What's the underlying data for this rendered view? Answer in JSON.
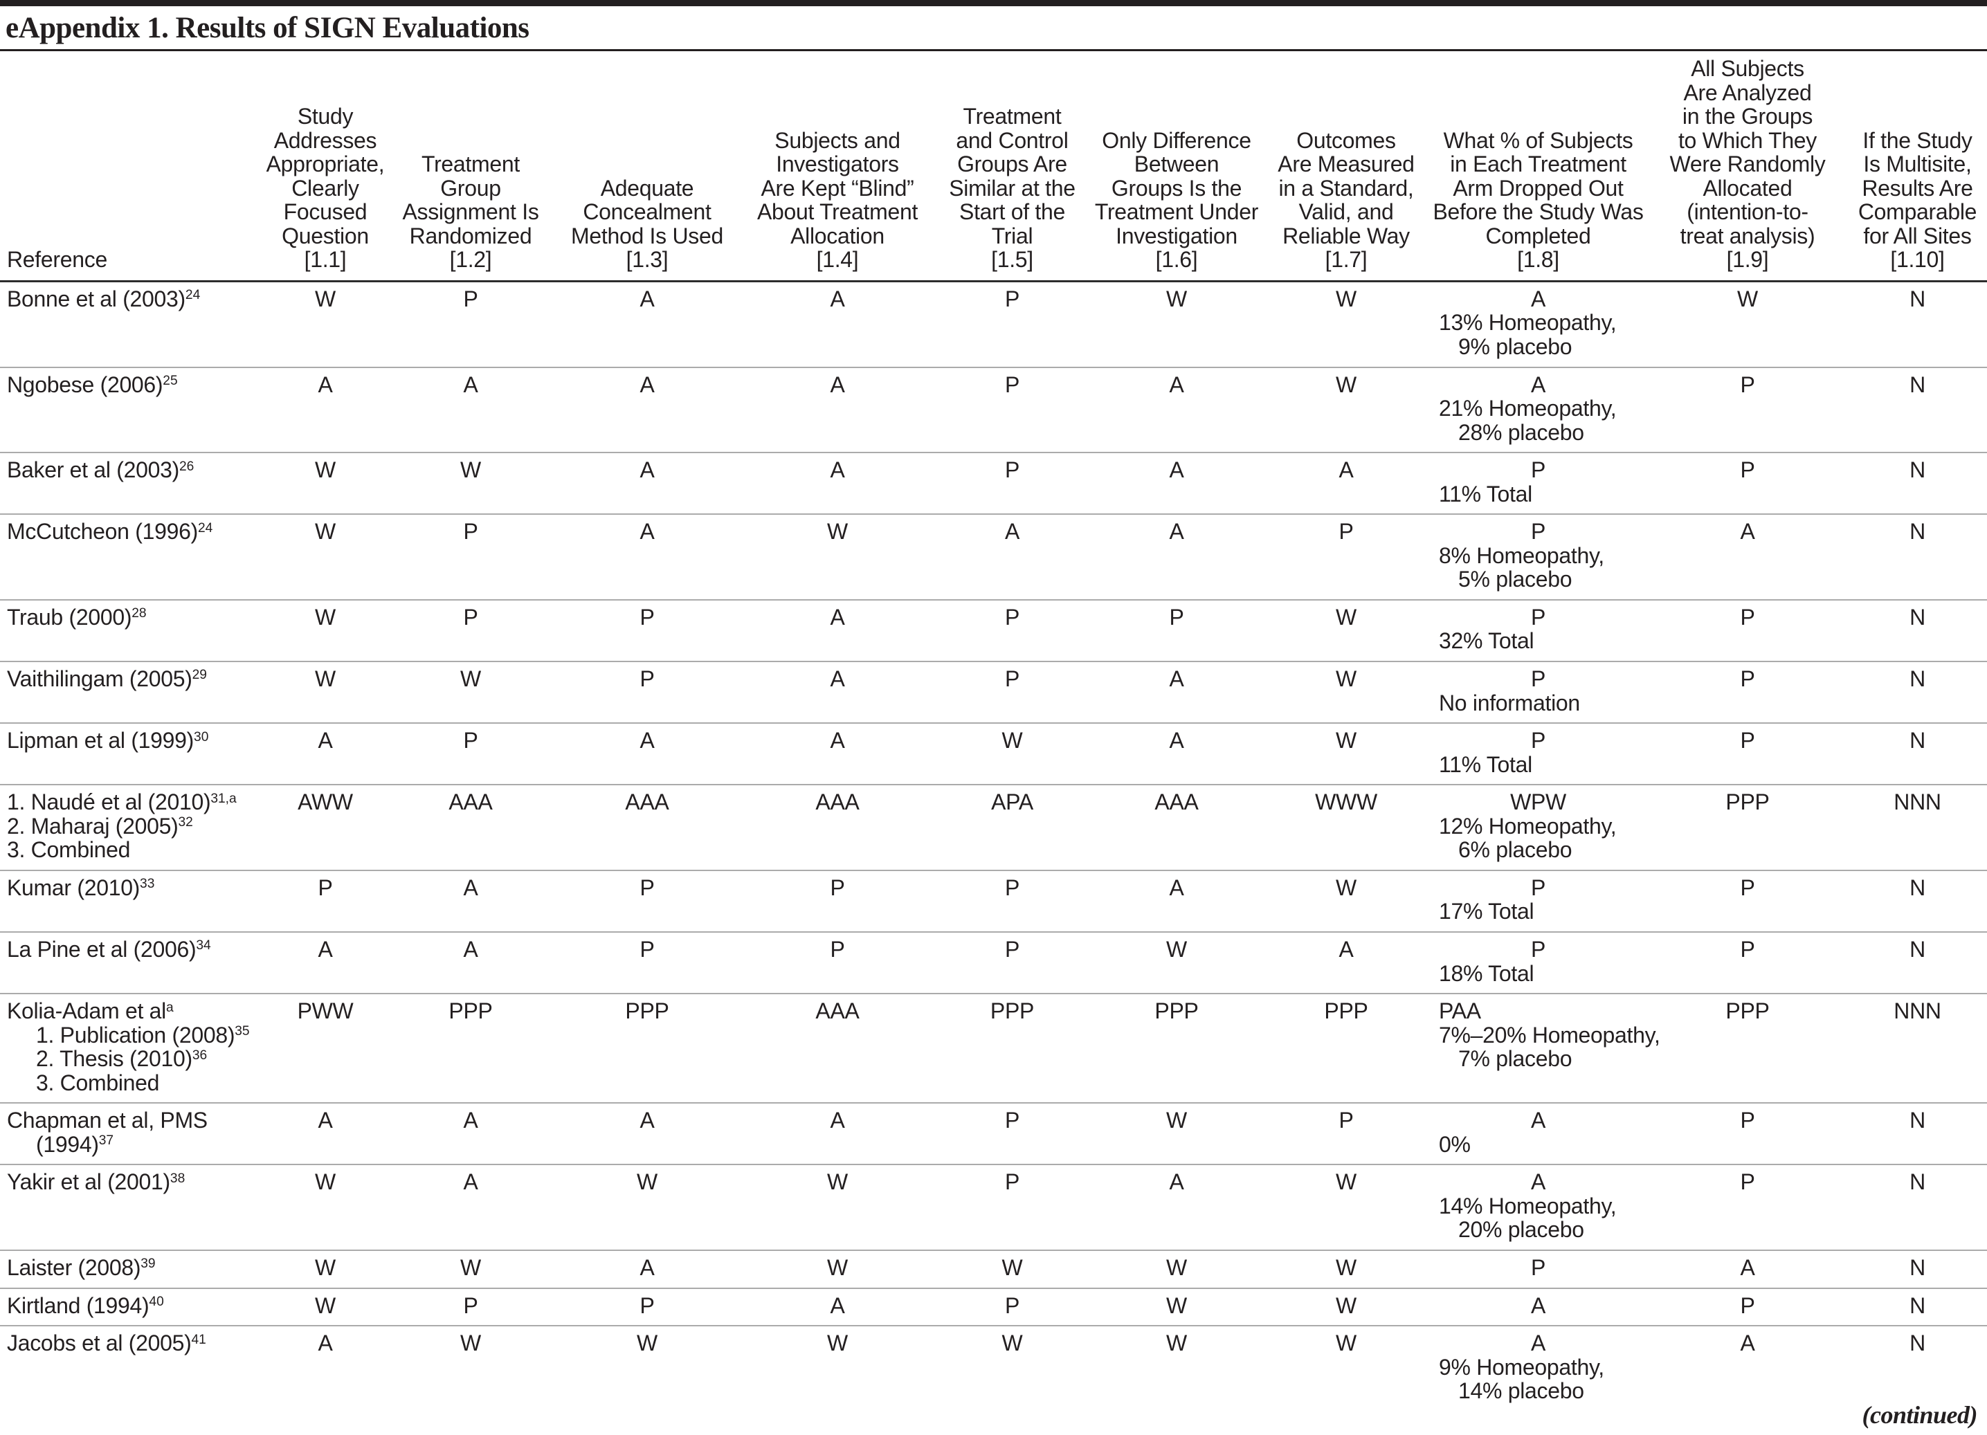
{
  "title": "eAppendix 1. Results of SIGN Evaluations",
  "continued": "(continued)",
  "table": {
    "reference_header": "Reference",
    "columns": [
      {
        "id": "1.1",
        "lines": [
          "Study",
          "Addresses",
          "Appropriate,",
          "Clearly",
          "Focused",
          "Question",
          "[1.1]"
        ]
      },
      {
        "id": "1.2",
        "lines": [
          "Treatment",
          "Group",
          "Assignment Is",
          "Randomized",
          "[1.2]"
        ]
      },
      {
        "id": "1.3",
        "lines": [
          "Adequate",
          "Concealment",
          "Method Is Used",
          "[1.3]"
        ]
      },
      {
        "id": "1.4",
        "lines": [
          "Subjects and",
          "Investigators",
          "Are Kept “Blind”",
          "About Treatment",
          "Allocation",
          "[1.4]"
        ]
      },
      {
        "id": "1.5",
        "lines": [
          "Treatment",
          "and Control",
          "Groups Are",
          "Similar at the",
          "Start of the",
          "Trial",
          "[1.5]"
        ]
      },
      {
        "id": "1.6",
        "lines": [
          "Only Difference",
          "Between",
          "Groups Is the",
          "Treatment Under",
          "Investigation",
          "[1.6]"
        ]
      },
      {
        "id": "1.7",
        "lines": [
          "Outcomes",
          "Are Measured",
          "in a Standard,",
          "Valid, and",
          "Reliable Way",
          "[1.7]"
        ]
      },
      {
        "id": "1.8",
        "lines": [
          "What % of Subjects",
          "in Each Treatment",
          "Arm Dropped Out",
          "Before the Study Was",
          "Completed",
          "[1.8]"
        ]
      },
      {
        "id": "1.9",
        "lines": [
          "All Subjects",
          "Are Analyzed",
          "in the Groups",
          "to Which They",
          "Were Randomly",
          "Allocated",
          "(intention-to-",
          "treat analysis)",
          "[1.9]"
        ]
      },
      {
        "id": "1.10",
        "lines": [
          "If the Study",
          "Is Multisite,",
          "Results Are",
          "Comparable",
          "for All Sites",
          "[1.10]"
        ]
      }
    ],
    "rows": [
      {
        "ref": [
          {
            "text": "Bonne et al (2003)",
            "sup": "24"
          }
        ],
        "values": [
          "W",
          "P",
          "A",
          "A",
          "P",
          "W",
          "W"
        ],
        "dropout": {
          "value": "A",
          "align": "center",
          "notes": [
            "13% Homeopathy,",
            "9% placebo"
          ]
        },
        "itt": "W",
        "multisite": "N"
      },
      {
        "ref": [
          {
            "text": "Ngobese (2006)",
            "sup": "25"
          }
        ],
        "values": [
          "A",
          "A",
          "A",
          "A",
          "P",
          "A",
          "W"
        ],
        "dropout": {
          "value": "A",
          "align": "center",
          "notes": [
            "21% Homeopathy,",
            "28% placebo"
          ]
        },
        "itt": "P",
        "multisite": "N"
      },
      {
        "ref": [
          {
            "text": "Baker et al (2003)",
            "sup": "26"
          }
        ],
        "values": [
          "W",
          "W",
          "A",
          "A",
          "P",
          "A",
          "A"
        ],
        "dropout": {
          "value": "P",
          "align": "center",
          "notes": [
            "11% Total"
          ]
        },
        "itt": "P",
        "multisite": "N"
      },
      {
        "ref": [
          {
            "text": "McCutcheon (1996)",
            "sup": "24"
          }
        ],
        "values": [
          "W",
          "P",
          "A",
          "W",
          "A",
          "A",
          "P"
        ],
        "dropout": {
          "value": "P",
          "align": "center",
          "notes": [
            "8% Homeopathy,",
            "5% placebo"
          ]
        },
        "itt": "A",
        "multisite": "N"
      },
      {
        "ref": [
          {
            "text": "Traub (2000)",
            "sup": "28"
          }
        ],
        "values": [
          "W",
          "P",
          "P",
          "A",
          "P",
          "P",
          "W"
        ],
        "dropout": {
          "value": "P",
          "align": "center",
          "notes": [
            "32% Total"
          ]
        },
        "itt": "P",
        "multisite": "N"
      },
      {
        "ref": [
          {
            "text": "Vaithilingam (2005)",
            "sup": "29"
          }
        ],
        "values": [
          "W",
          "W",
          "P",
          "A",
          "P",
          "A",
          "W"
        ],
        "dropout": {
          "value": "P",
          "align": "center",
          "notes": [
            "No information"
          ]
        },
        "itt": "P",
        "multisite": "N"
      },
      {
        "ref": [
          {
            "text": "Lipman et al (1999)",
            "sup": "30"
          }
        ],
        "values": [
          "A",
          "P",
          "A",
          "A",
          "W",
          "A",
          "W"
        ],
        "dropout": {
          "value": "P",
          "align": "center",
          "notes": [
            "11% Total"
          ]
        },
        "itt": "P",
        "multisite": "N"
      },
      {
        "ref": [
          {
            "text": "1. Naudé et al (2010)",
            "sup": "31,a"
          },
          {
            "text": "2. Maharaj (2005)",
            "sup": "32"
          },
          {
            "text": "3. Combined"
          }
        ],
        "values": [
          "AWW",
          "AAA",
          "AAA",
          "AAA",
          "APA",
          "AAA",
          "WWW"
        ],
        "dropout": {
          "value": "WPW",
          "align": "center",
          "notes": [
            "12% Homeopathy,",
            "6% placebo"
          ]
        },
        "itt": "PPP",
        "multisite": "NNN"
      },
      {
        "ref": [
          {
            "text": "Kumar (2010)",
            "sup": "33"
          }
        ],
        "values": [
          "P",
          "A",
          "P",
          "P",
          "P",
          "A",
          "W"
        ],
        "dropout": {
          "value": "P",
          "align": "center",
          "notes": [
            "17% Total"
          ]
        },
        "itt": "P",
        "multisite": "N"
      },
      {
        "ref": [
          {
            "text": "La Pine et al (2006)",
            "sup": "34"
          }
        ],
        "values": [
          "A",
          "A",
          "P",
          "P",
          "P",
          "W",
          "A"
        ],
        "dropout": {
          "value": "P",
          "align": "center",
          "notes": [
            "18% Total"
          ]
        },
        "itt": "P",
        "multisite": "N"
      },
      {
        "ref": [
          {
            "text": "Kolia-Adam et al",
            "sup": "a"
          },
          {
            "text": "1. Publication (2008)",
            "sup": "35",
            "indent": true
          },
          {
            "text": "2. Thesis (2010)",
            "sup": "36",
            "indent": true
          },
          {
            "text": "3. Combined",
            "indent": true
          }
        ],
        "values": [
          "PWW",
          "PPP",
          "PPP",
          "AAA",
          "PPP",
          "PPP",
          "PPP"
        ],
        "dropout": {
          "value": "PAA",
          "align": "left",
          "notes": [
            "7%–20% Homeopathy,",
            "7% placebo"
          ]
        },
        "itt": "PPP",
        "multisite": "NNN"
      },
      {
        "ref": [
          {
            "text": "Chapman et al, PMS"
          },
          {
            "text": "(1994)",
            "sup": "37",
            "indent": true
          }
        ],
        "values": [
          "A",
          "A",
          "A",
          "A",
          "P",
          "W",
          "P"
        ],
        "dropout": {
          "value": "A",
          "align": "center",
          "notes": [
            "0%"
          ]
        },
        "itt": "P",
        "multisite": "N"
      },
      {
        "ref": [
          {
            "text": "Yakir et al (2001)",
            "sup": "38"
          }
        ],
        "values": [
          "W",
          "A",
          "W",
          "W",
          "P",
          "A",
          "W"
        ],
        "dropout": {
          "value": "A",
          "align": "center",
          "notes": [
            "14% Homeopathy,",
            "20% placebo"
          ]
        },
        "itt": "P",
        "multisite": "N"
      },
      {
        "ref": [
          {
            "text": "Laister (2008)",
            "sup": "39"
          }
        ],
        "values": [
          "W",
          "W",
          "A",
          "W",
          "W",
          "W",
          "W"
        ],
        "dropout": {
          "value": "P",
          "align": "center",
          "notes": []
        },
        "itt": "A",
        "multisite": "N"
      },
      {
        "ref": [
          {
            "text": "Kirtland (1994)",
            "sup": "40"
          }
        ],
        "values": [
          "W",
          "P",
          "P",
          "A",
          "P",
          "W",
          "W"
        ],
        "dropout": {
          "value": "A",
          "align": "center",
          "notes": []
        },
        "itt": "P",
        "multisite": "N"
      },
      {
        "ref": [
          {
            "text": "Jacobs et al (2005)",
            "sup": "41"
          }
        ],
        "values": [
          "A",
          "W",
          "W",
          "W",
          "W",
          "W",
          "W"
        ],
        "dropout": {
          "value": "A",
          "align": "center",
          "notes": [
            "9% Homeopathy,",
            "14% placebo"
          ]
        },
        "itt": "A",
        "multisite": "N"
      }
    ]
  }
}
